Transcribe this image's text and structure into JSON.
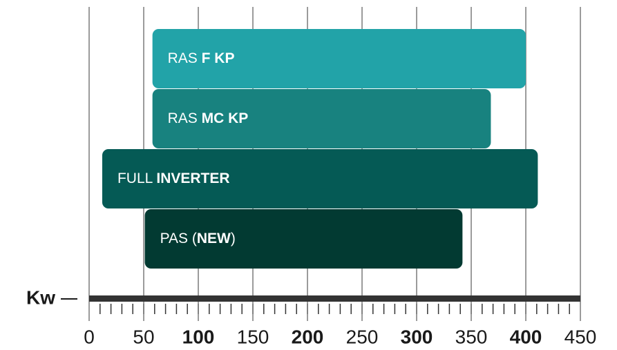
{
  "chart_data": {
    "type": "range-bar",
    "x_label": "Kw",
    "xlim": [
      0,
      450
    ],
    "xticks": [
      0,
      50,
      100,
      150,
      200,
      250,
      300,
      350,
      400,
      450
    ],
    "minor_tick_step": 10,
    "grid": true,
    "series": [
      {
        "name_parts": [
          {
            "text": "RAS ",
            "bold": false
          },
          {
            "text": "F KP",
            "bold": true
          }
        ],
        "color": "#22a3a8",
        "values": [
          58,
          400
        ]
      },
      {
        "name_parts": [
          {
            "text": "RAS ",
            "bold": false
          },
          {
            "text": "MC KP",
            "bold": true
          }
        ],
        "color": "#18827f",
        "values": [
          58,
          368
        ]
      },
      {
        "name_parts": [
          {
            "text": "FULL ",
            "bold": false
          },
          {
            "text": "INVERTER",
            "bold": true
          }
        ],
        "color": "#055a55",
        "values": [
          12,
          411
        ]
      },
      {
        "name_parts": [
          {
            "text": "PAS (",
            "bold": false
          },
          {
            "text": "NEW",
            "bold": true
          },
          {
            "text": ")",
            "bold": false
          }
        ],
        "color": "#023a32",
        "values": [
          51,
          342
        ]
      }
    ]
  }
}
